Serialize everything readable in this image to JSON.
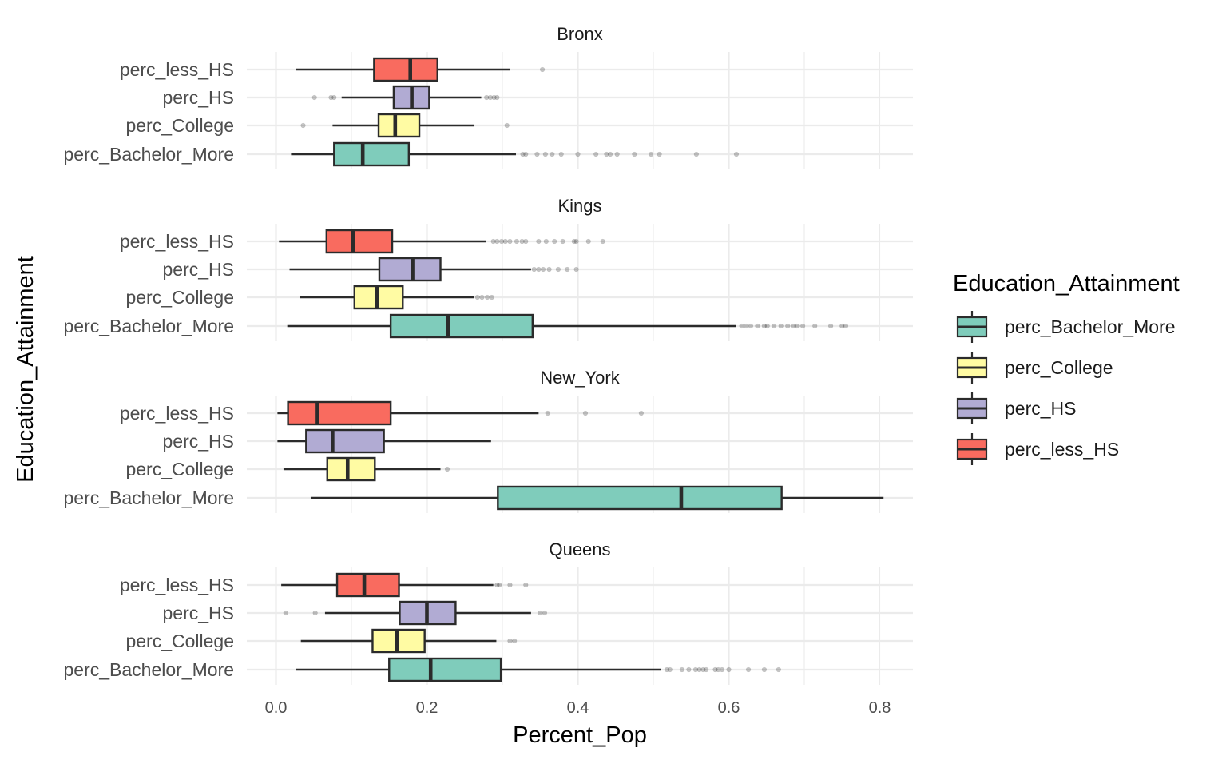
{
  "chart_data": {
    "type": "boxplot",
    "orientation": "horizontal",
    "xlabel": "Percent_Pop",
    "ylabel": "Education_Attainment",
    "xlim": [
      -0.04,
      0.845
    ],
    "xticks": [
      0.0,
      0.2,
      0.4,
      0.6,
      0.8
    ],
    "xtick_labels": [
      "0.0",
      "0.2",
      "0.4",
      "0.6",
      "0.8"
    ],
    "grid": true,
    "categories": [
      "perc_less_HS",
      "perc_HS",
      "perc_College",
      "perc_Bachelor_More"
    ],
    "legend": {
      "title": "Education_Attainment",
      "placement": "right",
      "items": [
        {
          "label": "perc_Bachelor_More",
          "color": "#7FCCBB"
        },
        {
          "label": "perc_College",
          "color": "#FFFBA3"
        },
        {
          "label": "perc_HS",
          "color": "#B1ABD3"
        },
        {
          "label": "perc_less_HS",
          "color": "#F96B5F"
        }
      ]
    },
    "colors": {
      "perc_less_HS": "#F96B5F",
      "perc_HS": "#B1ABD3",
      "perc_College": "#FFFBA3",
      "perc_Bachelor_More": "#7FCCBB"
    },
    "facets": [
      {
        "title": "Bronx",
        "boxes": [
          {
            "category": "perc_less_HS",
            "whisker_low": 0.026,
            "q1": 0.13,
            "median": 0.178,
            "q3": 0.214,
            "whisker_high": 0.31,
            "outliers": [
              0.353
            ]
          },
          {
            "category": "perc_HS",
            "whisker_low": 0.087,
            "q1": 0.156,
            "median": 0.18,
            "q3": 0.203,
            "whisker_high": 0.272,
            "outliers": [
              0.051,
              0.073,
              0.077,
              0.279,
              0.284,
              0.289,
              0.293
            ]
          },
          {
            "category": "perc_College",
            "whisker_low": 0.075,
            "q1": 0.136,
            "median": 0.158,
            "q3": 0.19,
            "whisker_high": 0.263,
            "outliers": [
              0.036,
              0.306
            ]
          },
          {
            "category": "perc_Bachelor_More",
            "whisker_low": 0.02,
            "q1": 0.077,
            "median": 0.115,
            "q3": 0.176,
            "whisker_high": 0.318,
            "outliers": [
              0.327,
              0.331,
              0.346,
              0.357,
              0.366,
              0.378,
              0.4,
              0.424,
              0.438,
              0.443,
              0.452,
              0.475,
              0.497,
              0.508,
              0.557,
              0.61
            ]
          }
        ]
      },
      {
        "title": "Kings",
        "boxes": [
          {
            "category": "perc_less_HS",
            "whisker_low": 0.004,
            "q1": 0.067,
            "median": 0.102,
            "q3": 0.154,
            "whisker_high": 0.278,
            "outliers": [
              0.288,
              0.293,
              0.299,
              0.304,
              0.31,
              0.319,
              0.326,
              0.331,
              0.348,
              0.358,
              0.369,
              0.38,
              0.395,
              0.398,
              0.414,
              0.433
            ]
          },
          {
            "category": "perc_HS",
            "whisker_low": 0.018,
            "q1": 0.137,
            "median": 0.181,
            "q3": 0.218,
            "whisker_high": 0.338,
            "outliers": [
              0.342,
              0.348,
              0.354,
              0.362,
              0.374,
              0.386,
              0.398
            ]
          },
          {
            "category": "perc_College",
            "whisker_low": 0.032,
            "q1": 0.104,
            "median": 0.134,
            "q3": 0.168,
            "whisker_high": 0.262,
            "outliers": [
              0.267,
              0.273,
              0.28,
              0.286
            ]
          },
          {
            "category": "perc_Bachelor_More",
            "whisker_low": 0.015,
            "q1": 0.152,
            "median": 0.228,
            "q3": 0.34,
            "whisker_high": 0.609,
            "outliers": [
              0.617,
              0.623,
              0.629,
              0.638,
              0.647,
              0.651,
              0.66,
              0.669,
              0.678,
              0.685,
              0.69,
              0.698,
              0.714,
              0.735,
              0.75,
              0.755
            ]
          }
        ]
      },
      {
        "title": "New_York",
        "boxes": [
          {
            "category": "perc_less_HS",
            "whisker_low": 0.002,
            "q1": 0.016,
            "median": 0.055,
            "q3": 0.152,
            "whisker_high": 0.348,
            "outliers": [
              0.36,
              0.41,
              0.484
            ]
          },
          {
            "category": "perc_HS",
            "whisker_low": 0.002,
            "q1": 0.04,
            "median": 0.075,
            "q3": 0.143,
            "whisker_high": 0.285,
            "outliers": []
          },
          {
            "category": "perc_College",
            "whisker_low": 0.01,
            "q1": 0.068,
            "median": 0.095,
            "q3": 0.131,
            "whisker_high": 0.218,
            "outliers": [
              0.227
            ]
          },
          {
            "category": "perc_Bachelor_More",
            "whisker_low": 0.046,
            "q1": 0.294,
            "median": 0.537,
            "q3": 0.67,
            "whisker_high": 0.805,
            "outliers": []
          }
        ]
      },
      {
        "title": "Queens",
        "boxes": [
          {
            "category": "perc_less_HS",
            "whisker_low": 0.007,
            "q1": 0.081,
            "median": 0.117,
            "q3": 0.163,
            "whisker_high": 0.288,
            "outliers": [
              0.293,
              0.296,
              0.31,
              0.331
            ]
          },
          {
            "category": "perc_HS",
            "whisker_low": 0.065,
            "q1": 0.164,
            "median": 0.2,
            "q3": 0.238,
            "whisker_high": 0.338,
            "outliers": [
              0.013,
              0.052,
              0.35,
              0.356
            ]
          },
          {
            "category": "perc_College",
            "whisker_low": 0.033,
            "q1": 0.128,
            "median": 0.16,
            "q3": 0.197,
            "whisker_high": 0.292,
            "outliers": [
              0.31,
              0.316
            ]
          },
          {
            "category": "perc_Bachelor_More",
            "whisker_low": 0.026,
            "q1": 0.15,
            "median": 0.205,
            "q3": 0.298,
            "whisker_high": 0.51,
            "outliers": [
              0.518,
              0.522,
              0.538,
              0.547,
              0.556,
              0.561,
              0.566,
              0.57,
              0.582,
              0.586,
              0.591,
              0.6,
              0.626,
              0.647,
              0.666
            ]
          }
        ]
      }
    ]
  }
}
